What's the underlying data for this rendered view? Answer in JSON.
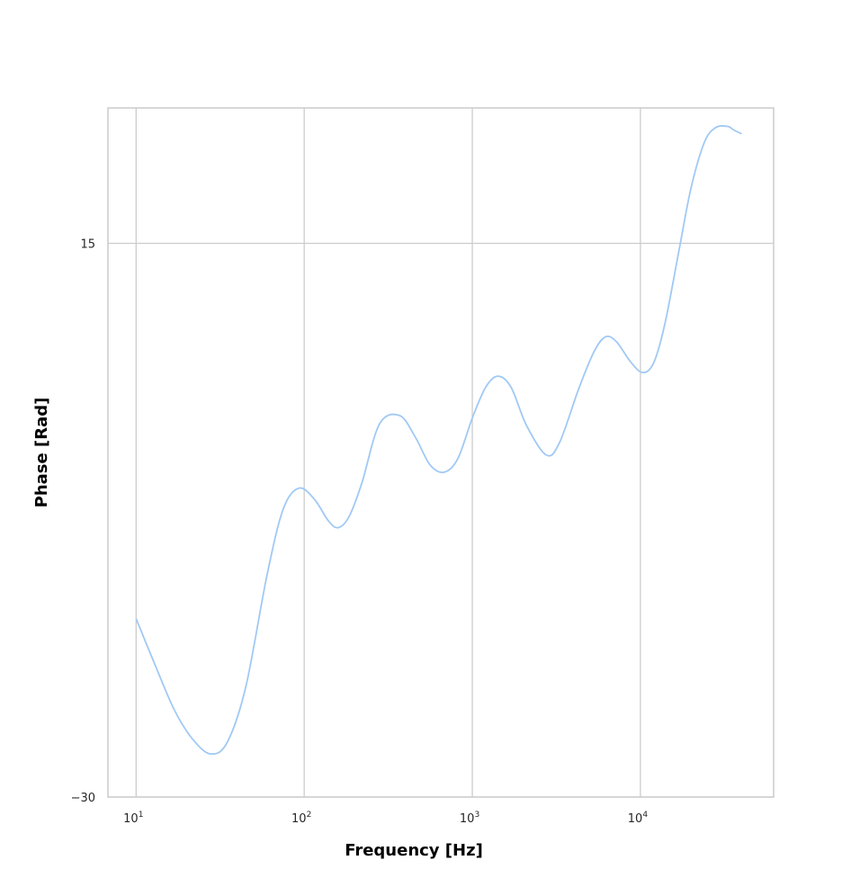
{
  "chart_data": {
    "type": "line",
    "title": "",
    "xlabel": "Frequency [Hz]",
    "ylabel": "Phase [Rad]",
    "xscale": "log",
    "xlim": [
      6.8,
      62000
    ],
    "ylim": [
      -30,
      26
    ],
    "grid": true,
    "legend": "none",
    "x_ticks": [
      {
        "value": 10,
        "base": "10",
        "exp": "1"
      },
      {
        "value": 100,
        "base": "10",
        "exp": "2"
      },
      {
        "value": 1000,
        "base": "10",
        "exp": "3"
      },
      {
        "value": 10000,
        "base": "10",
        "exp": "4"
      }
    ],
    "y_ticks": [
      {
        "value": 15,
        "label": "15"
      },
      {
        "value": -30,
        "label": "−30"
      }
    ],
    "series": [
      {
        "color": "#a1c9f4",
        "x": [
          10,
          13,
          17,
          22,
          28,
          35,
          45,
          60,
          75,
          93,
          115,
          140,
          160,
          185,
          220,
          280,
          370,
          460,
          560,
          680,
          820,
          1000,
          1200,
          1420,
          1700,
          2100,
          2750,
          3300,
          4300,
          5300,
          6200,
          7200,
          8700,
          10300,
          12000,
          14000,
          17000,
          20000,
          24000,
          28000,
          33000,
          36000,
          40000
        ],
        "y": [
          -15.5,
          -19.3,
          -23.0,
          -25.4,
          -26.5,
          -25.5,
          -21.0,
          -12.0,
          -6.6,
          -4.9,
          -5.8,
          -7.6,
          -8.1,
          -7.2,
          -4.5,
          0.3,
          1.0,
          -0.8,
          -3.0,
          -3.6,
          -2.5,
          0.8,
          3.3,
          4.2,
          3.3,
          0.2,
          -2.2,
          -1.2,
          3.2,
          6.2,
          7.4,
          7.0,
          5.4,
          4.5,
          5.3,
          8.5,
          14.5,
          19.5,
          23.2,
          24.4,
          24.5,
          24.2,
          23.9
        ]
      }
    ]
  }
}
